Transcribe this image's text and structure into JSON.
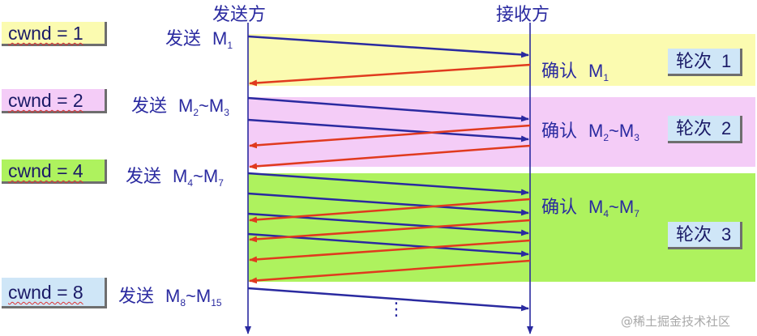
{
  "headers": {
    "sender": "发送方",
    "receiver": "接收方"
  },
  "cwnd_boxes": [
    {
      "label": "cwnd = 1"
    },
    {
      "label": "cwnd = 2"
    },
    {
      "label": "cwnd = 4"
    },
    {
      "label": "cwnd = 8"
    }
  ],
  "send_labels": [
    {
      "verb": "发送",
      "m1": "M",
      "s1": "1",
      "tilde": "",
      "m2": "",
      "s2": ""
    },
    {
      "verb": "发送",
      "m1": "M",
      "s1": "2",
      "tilde": "~",
      "m2": "M",
      "s2": "3"
    },
    {
      "verb": "发送",
      "m1": "M",
      "s1": "4",
      "tilde": "~",
      "m2": "M",
      "s2": "7"
    },
    {
      "verb": "发送",
      "m1": "M",
      "s1": "8",
      "tilde": "~",
      "m2": "M",
      "s2": "15"
    }
  ],
  "ack_labels": [
    {
      "verb": "确认",
      "m1": "M",
      "s1": "1",
      "tilde": "",
      "m2": "",
      "s2": ""
    },
    {
      "verb": "确认",
      "m1": "M",
      "s1": "2",
      "tilde": "~",
      "m2": "M",
      "s2": "3"
    },
    {
      "verb": "确认",
      "m1": "M",
      "s1": "4",
      "tilde": "~",
      "m2": "M",
      "s2": "7"
    }
  ],
  "rounds": [
    {
      "word": "轮次",
      "num": "1"
    },
    {
      "word": "轮次",
      "num": "2"
    },
    {
      "word": "轮次",
      "num": "3"
    }
  ],
  "ellipsis": "⋮",
  "watermark": "@稀土掘金技术社区",
  "colors": {
    "send_arrow": "#2a2aa0",
    "ack_arrow": "#e03a1e",
    "round1": "#fbfbb0",
    "round2": "#f4ccf7",
    "round3": "#aef25e",
    "box": "#cfe6f7"
  }
}
